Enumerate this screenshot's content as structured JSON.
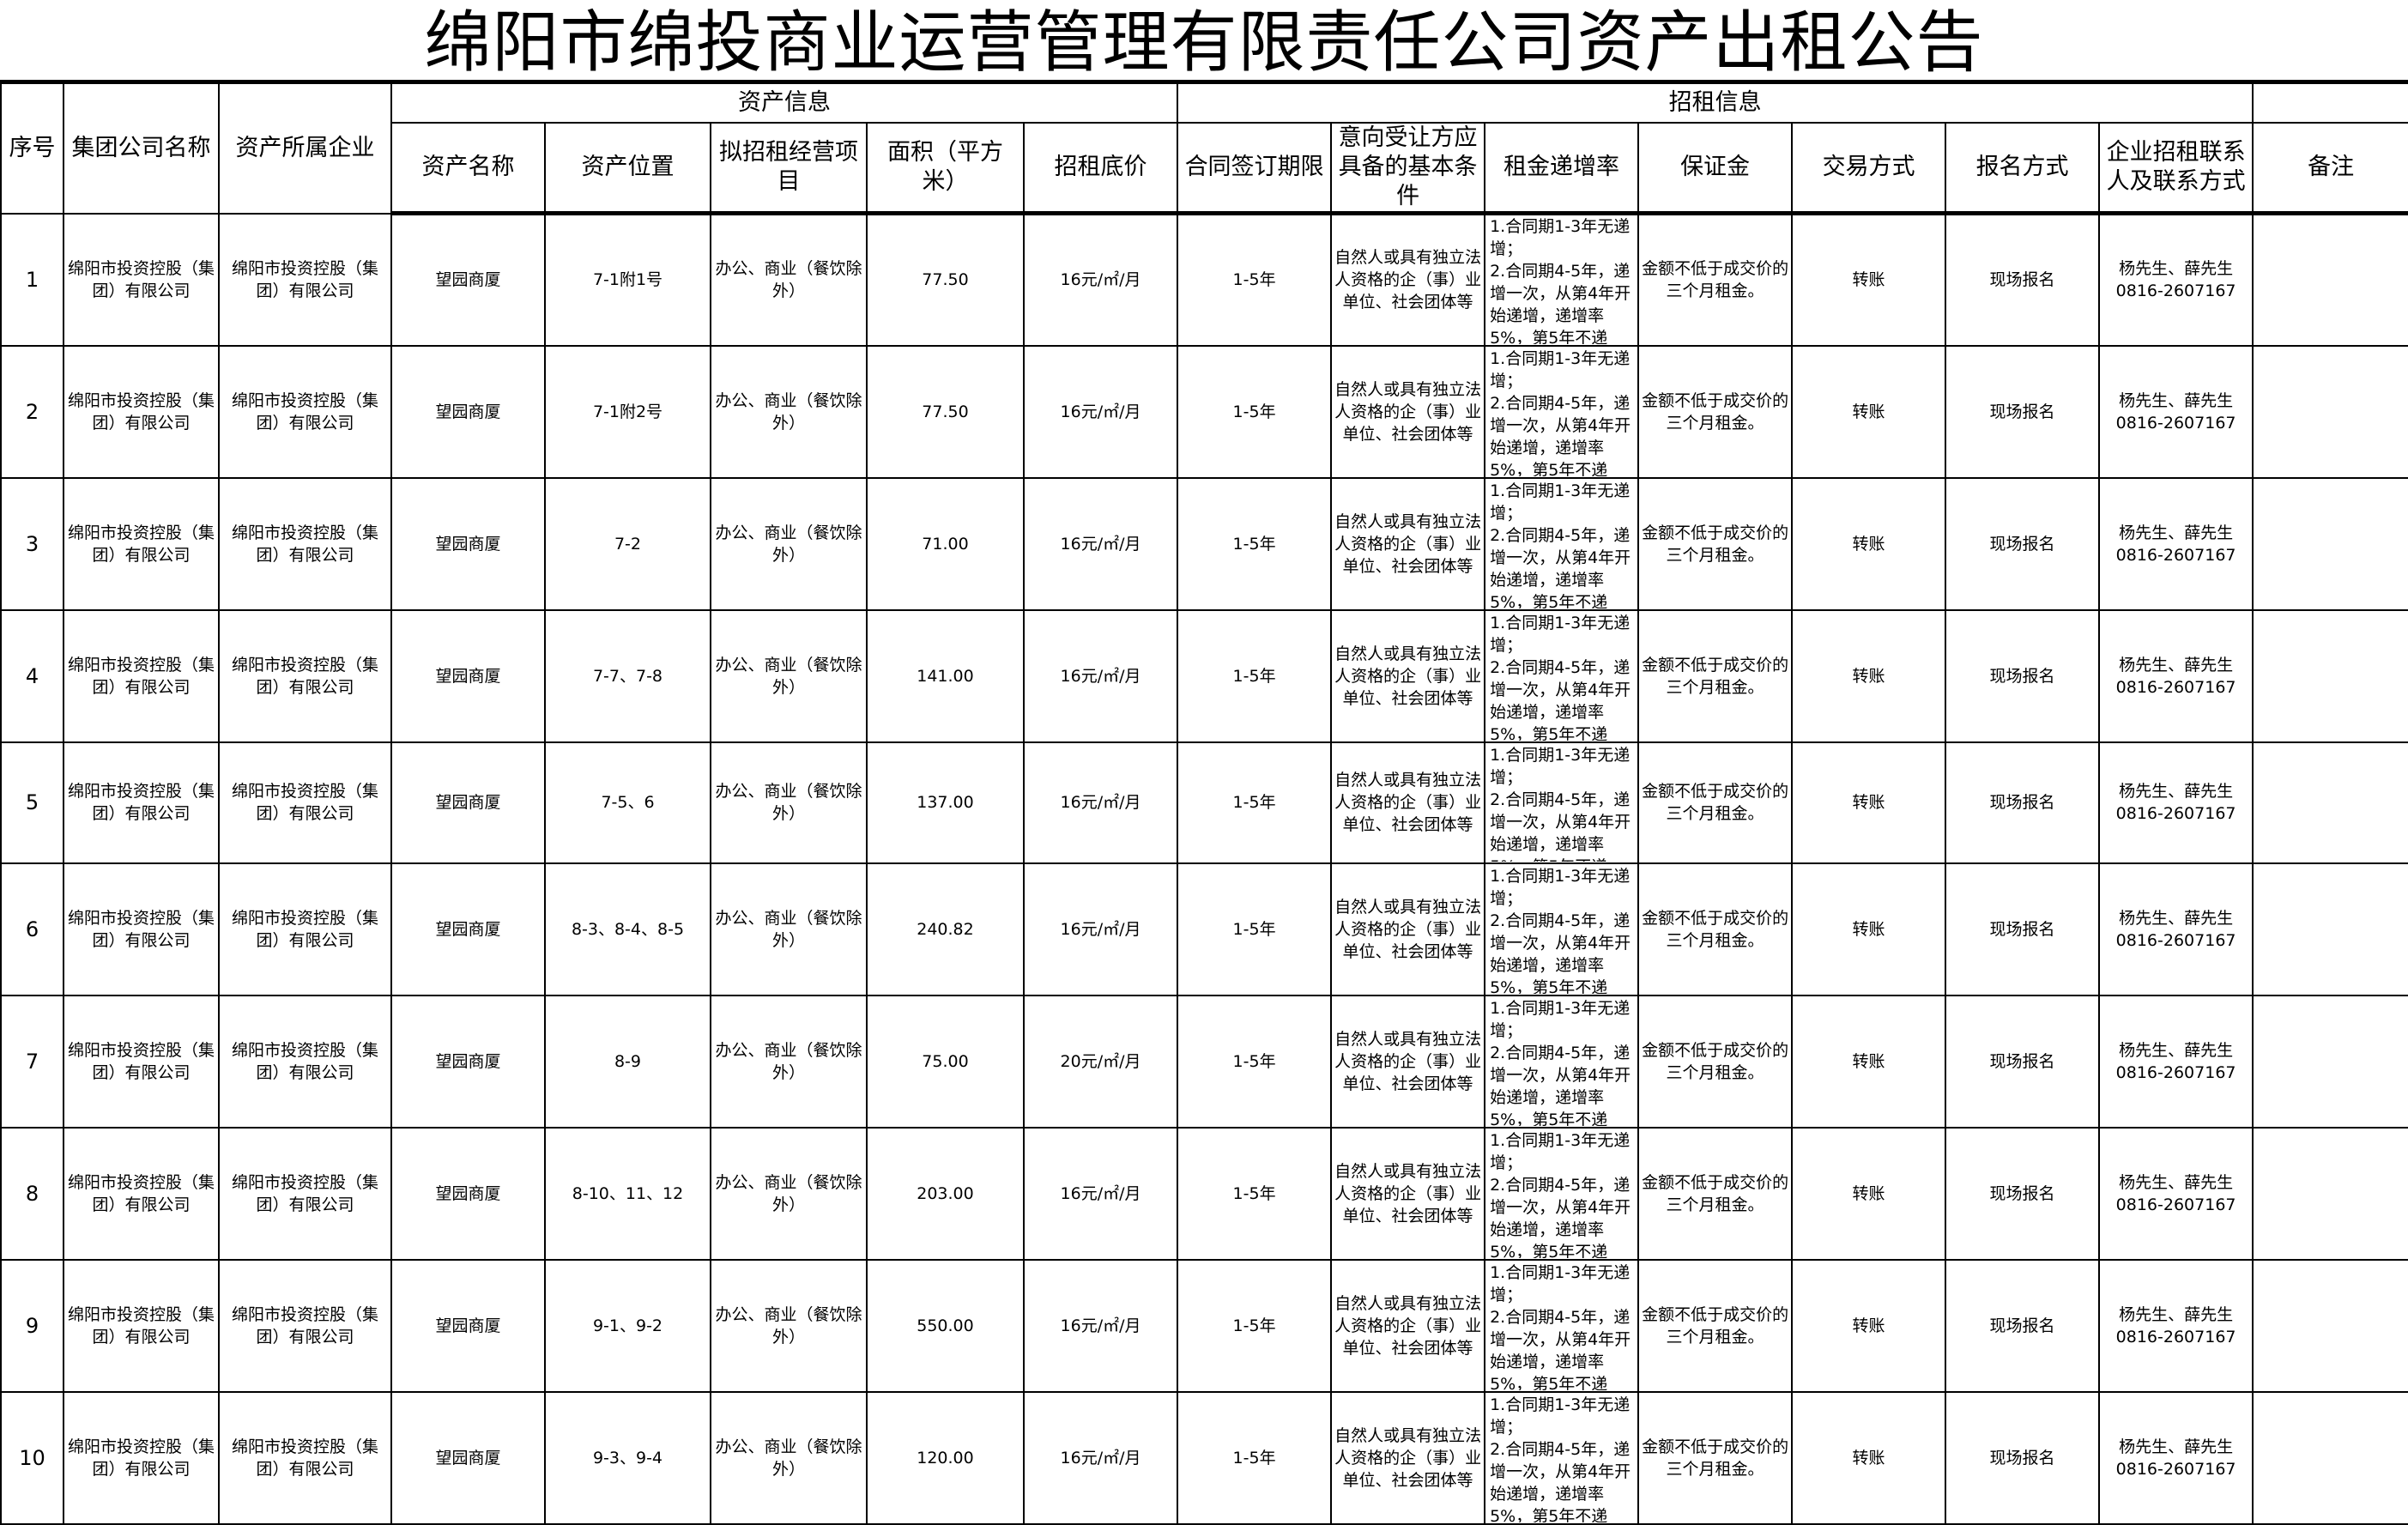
{
  "title": "绵阳市绵投商业运营管理有限责任公司资产出租公告",
  "headers": {
    "index": "序号",
    "group": "集团公司名称",
    "owner": "资产所属企业",
    "asset_info": "资产信息",
    "rent_info": "招租信息",
    "asset_name": "资产名称",
    "location": "资产位置",
    "project": "拟招租经营项目",
    "area": "面积（平方米）",
    "price": "招租底价",
    "term": "合同签订期限",
    "conditions": "意向受让方应具备的基本条件",
    "increase": "租金递增率",
    "deposit": "保证金",
    "trade": "交易方式",
    "signup": "报名方式",
    "contact": "企业招租联系人及联系方式",
    "remark": "备注"
  },
  "rows": [
    {
      "index": "1",
      "location": "7-1附1号",
      "area": "77.50",
      "price": "16元/㎡/月"
    },
    {
      "index": "2",
      "location": "7-1附2号",
      "area": "77.50",
      "price": "16元/㎡/月"
    },
    {
      "index": "3",
      "location": "7-2",
      "area": "71.00",
      "price": "16元/㎡/月"
    },
    {
      "index": "4",
      "location": "7-7、7-8",
      "area": "141.00",
      "price": "16元/㎡/月"
    },
    {
      "index": "5",
      "location": "7-5、6",
      "area": "137.00",
      "price": "16元/㎡/月"
    },
    {
      "index": "6",
      "location": "8-3、8-4、8-5",
      "area": "240.82",
      "price": "16元/㎡/月"
    },
    {
      "index": "7",
      "location": "8-9",
      "area": "75.00",
      "price": "20元/㎡/月"
    },
    {
      "index": "8",
      "location": "8-10、11、12",
      "area": "203.00",
      "price": "16元/㎡/月"
    },
    {
      "index": "9",
      "location": "9-1、9-2",
      "area": "550.00",
      "price": "16元/㎡/月"
    },
    {
      "index": "10",
      "location": "9-3、9-4",
      "area": "120.00",
      "price": "16元/㎡/月"
    }
  ],
  "common": {
    "group": "绵阳市投资控股（集团）有限公司",
    "owner": "绵阳市投资控股（集团）有限公司",
    "asset_name": "望园商厦",
    "project": "办公、商业（餐饮除外）",
    "term": "1-5年",
    "conditions": "自然人或具有独立法人资格的企（事）业单位、社会团体等",
    "increase_1": "1.合同期1-3年无递增；",
    "increase_2": "2.合同期4-5年，递增一次，从第4年开始递增，递增率5%，第5年不递",
    "deposit": "金额不低于成交价的三个月租金。",
    "trade": "转账",
    "signup": "现场报名",
    "contact": "杨先生、薛先生 0816-2607167",
    "remark": ""
  }
}
